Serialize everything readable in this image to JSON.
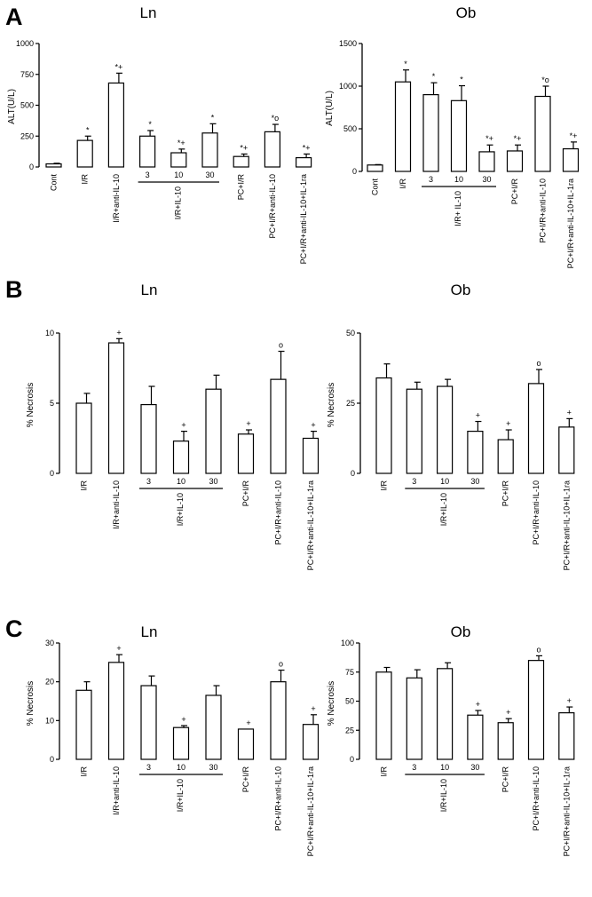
{
  "figure": {
    "panels": [
      {
        "letter": "A"
      },
      {
        "letter": "B"
      },
      {
        "letter": "C"
      }
    ]
  },
  "chart_data": [
    {
      "panel": "A",
      "type": "bar",
      "title": "Ln",
      "ylabel": "ALT(U/L)",
      "ylim": [
        0,
        1000
      ],
      "yticks": [
        0,
        250,
        500,
        750,
        1000
      ],
      "categories": [
        "Cont",
        "I/R",
        "I/R+anti-IL-10",
        "3",
        "10",
        "30",
        "PC+I/R",
        "PC+I/R+anti-IL-10",
        "PC+I/R+anti-IL-10+IL-1ra"
      ],
      "values": [
        25,
        215,
        680,
        250,
        115,
        275,
        85,
        285,
        75
      ],
      "errors": [
        5,
        35,
        80,
        45,
        30,
        75,
        20,
        60,
        30
      ],
      "markers": [
        "",
        "*",
        "*+",
        "*",
        "*+",
        "*",
        "*+",
        "*o",
        "*+"
      ],
      "group": {
        "label": "I/R+IL-10",
        "members": [
          3,
          4,
          5
        ]
      }
    },
    {
      "panel": "A",
      "type": "bar",
      "title": "Ob",
      "ylabel": "ALT(U/L)",
      "ylim": [
        0,
        1500
      ],
      "yticks": [
        0,
        500,
        1000,
        1500
      ],
      "categories": [
        "Cont",
        "I/R",
        "3",
        "10",
        "30",
        "PC+I/R",
        "PC+I/R+anti-IL-10",
        "PC+I/R+anti-IL-10+IL-1ra"
      ],
      "values": [
        75,
        1050,
        900,
        830,
        230,
        240,
        880,
        265
      ],
      "errors": [
        5,
        140,
        140,
        175,
        80,
        70,
        120,
        80
      ],
      "markers": [
        "",
        "*",
        "*",
        "*",
        "*+",
        "*+",
        "*o",
        "*+"
      ],
      "group": {
        "label": "I/R+ IL-10",
        "members": [
          2,
          3,
          4
        ]
      }
    },
    {
      "panel": "B",
      "type": "bar",
      "title": "Ln",
      "ylabel": "% Necrosis",
      "ylim": [
        0,
        10
      ],
      "yticks": [
        0,
        5,
        10
      ],
      "categories": [
        "I/R",
        "I/R+anti-IL-10",
        "3",
        "10",
        "30",
        "PC+I/R",
        "PC+I/R+anti-IL-10",
        "PC+I/R+anti-IL-10+IL-1ra"
      ],
      "values": [
        5,
        9.3,
        4.9,
        2.3,
        6.0,
        2.8,
        6.7,
        2.5
      ],
      "errors": [
        0.7,
        0.3,
        1.3,
        0.7,
        1.0,
        0.3,
        2.0,
        0.5
      ],
      "markers": [
        "",
        "+",
        "",
        "+",
        "",
        "+",
        "o",
        "+"
      ],
      "group": {
        "label": "I/R+IL-10",
        "members": [
          2,
          3,
          4
        ]
      }
    },
    {
      "panel": "B",
      "type": "bar",
      "title": "Ob",
      "ylabel": "% Necrosis",
      "ylim": [
        0,
        50
      ],
      "yticks": [
        0,
        25,
        50
      ],
      "categories": [
        "I/R",
        "3",
        "10",
        "30",
        "PC+I/R",
        "PC+I/R+anti-IL-10",
        "PC+I/R+anti-IL-10+IL-1ra"
      ],
      "values": [
        34,
        30,
        31,
        15,
        12,
        32,
        16.5
      ],
      "errors": [
        5,
        2.5,
        2.5,
        3.5,
        3.5,
        5,
        3
      ],
      "markers": [
        "",
        "",
        "",
        "+",
        "+",
        "o",
        "+"
      ],
      "group": {
        "label": "I/R+IL-10",
        "members": [
          1,
          2,
          3
        ]
      }
    },
    {
      "panel": "C",
      "type": "bar",
      "title": "Ln",
      "ylabel": "% Necrosis",
      "ylim": [
        0,
        30
      ],
      "yticks": [
        0,
        10,
        20,
        30
      ],
      "categories": [
        "I/R",
        "I/R+anti-IL-10",
        "3",
        "10",
        "30",
        "PC+I/R",
        "PC+I/R+anti-IL-10",
        "PC+I/R+anti-IL-10+IL-1ra"
      ],
      "values": [
        17.8,
        25,
        19,
        8.2,
        16.5,
        7.8,
        20,
        9
      ],
      "errors": [
        2.2,
        2,
        2.5,
        0.5,
        2.5,
        0,
        3,
        2.5
      ],
      "markers": [
        "",
        "+",
        "",
        "+",
        "",
        "+",
        "o",
        "+"
      ],
      "group": {
        "label": "I/R+IL-10",
        "members": [
          2,
          3,
          4
        ]
      }
    },
    {
      "panel": "C",
      "type": "bar",
      "title": "Ob",
      "ylabel": "% Necrosis",
      "ylim": [
        0,
        100
      ],
      "yticks": [
        0,
        25,
        50,
        75,
        100
      ],
      "categories": [
        "I/R",
        "3",
        "10",
        "30",
        "PC+I/R",
        "PC+I/R+anti-IL-10",
        "PC+I/R+anti-IL-10+IL-1ra"
      ],
      "values": [
        75,
        70,
        78,
        38,
        31.5,
        85,
        40
      ],
      "errors": [
        4,
        7,
        5,
        4,
        3.5,
        4,
        5
      ],
      "markers": [
        "",
        "",
        "",
        "+",
        "+",
        "o",
        "+"
      ],
      "group": {
        "label": "I/R+IL-10",
        "members": [
          1,
          2,
          3
        ]
      }
    }
  ]
}
